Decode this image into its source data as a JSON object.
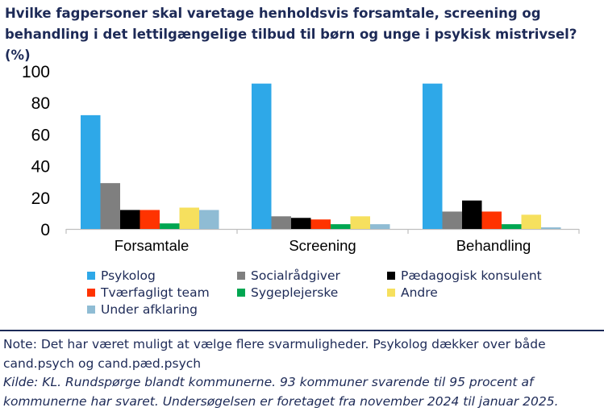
{
  "title": "Hvilke fagpersoner skal varetage henholdsvis forsamtale, screening og behandling i det lettilgængelige tilbud til børn og unge i psykisk mistrivsel? (%)",
  "note": "Note: Det har været muligt at vælge flere svarmuligheder. Psykolog dækker over både cand.psych og cand.pæd.psych",
  "source": "Kilde: KL. Rundspørge blandt kommunerne. 93 kommuner svarende til 95 procent af kommunerne har svaret. Undersøgelsen er foretaget fra november 2024 til januar 2025.",
  "chart_data": {
    "type": "bar",
    "title": "Hvilke fagpersoner skal varetage henholdsvis forsamtale, screening og behandling i det lettilgængelige tilbud til børn og unge i psykisk mistrivsel? (%)",
    "xlabel": "",
    "ylabel": "",
    "ylim": [
      0,
      100
    ],
    "yticks": [
      0,
      20,
      40,
      60,
      80,
      100
    ],
    "grid": false,
    "legend_position": "bottom",
    "categories": [
      "Forsamtale",
      "Screening",
      "Behandling"
    ],
    "series": [
      {
        "name": "Psykolog",
        "color": "#2ea8e8",
        "values": [
          72,
          92,
          92
        ]
      },
      {
        "name": "Socialrådgiver",
        "color": "#7f7f7f",
        "values": [
          29,
          8,
          11
        ]
      },
      {
        "name": "Pædagogisk konsulent",
        "color": "#000000",
        "values": [
          12,
          7,
          18
        ]
      },
      {
        "name": "Tværfagligt team",
        "color": "#ff3300",
        "values": [
          12,
          6,
          11
        ]
      },
      {
        "name": "Sygeplejerske",
        "color": "#00a651",
        "values": [
          3.5,
          3,
          3
        ]
      },
      {
        "name": "Andre",
        "color": "#f6e05e",
        "values": [
          13.5,
          8,
          9
        ]
      },
      {
        "name": "Under afklaring",
        "color": "#8fbcd4",
        "values": [
          12,
          3,
          1
        ]
      }
    ]
  }
}
